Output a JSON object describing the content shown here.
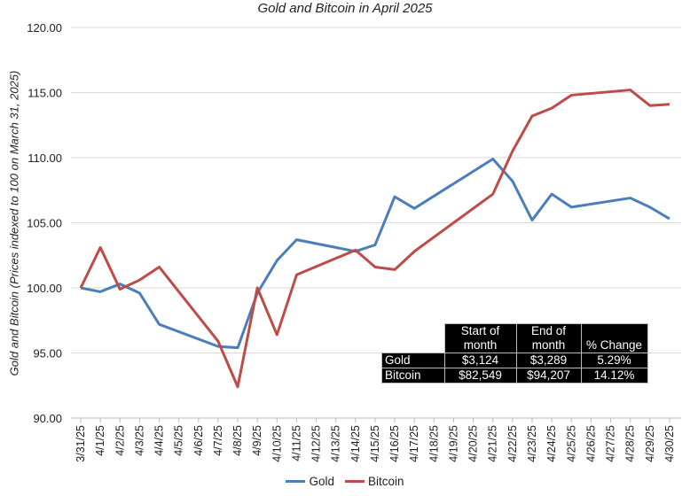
{
  "chart_data": {
    "type": "line",
    "title": "Gold and Bitcoin in April 2025",
    "ylabel": "Gold and Bitcoin (Prices indexed to 100 on March 31, 2025)",
    "xlabel": "",
    "ylim": [
      90,
      120
    ],
    "yticks": [
      "90.00",
      "95.00",
      "100.00",
      "105.00",
      "110.00",
      "115.00",
      "120.00"
    ],
    "xtick_labels": [
      "3/31/25",
      "4/1/25",
      "4/2/25",
      "4/3/25",
      "4/4/25",
      "4/5/25",
      "4/6/25",
      "4/7/25",
      "4/8/25",
      "4/9/25",
      "4/10/25",
      "4/11/25",
      "4/12/25",
      "4/13/25",
      "4/14/25",
      "4/15/25",
      "4/16/25",
      "4/17/25",
      "4/18/25",
      "4/19/25",
      "4/20/25",
      "4/21/25",
      "4/22/25",
      "4/23/25",
      "4/24/25",
      "4/25/25",
      "4/26/25",
      "4/27/25",
      "4/28/25",
      "4/29/25",
      "4/30/25"
    ],
    "x": [
      "3/31/25",
      "4/1/25",
      "4/2/25",
      "4/3/25",
      "4/4/25",
      "4/7/25",
      "4/8/25",
      "4/9/25",
      "4/10/25",
      "4/11/25",
      "4/14/25",
      "4/15/25",
      "4/16/25",
      "4/17/25",
      "4/21/25",
      "4/22/25",
      "4/23/25",
      "4/24/25",
      "4/25/25",
      "4/28/25",
      "4/29/25",
      "4/30/25"
    ],
    "grid": true,
    "legend_position": "bottom",
    "series": [
      {
        "name": "Gold",
        "color": "#4a7ebb",
        "values": [
          100.0,
          99.7,
          100.3,
          99.6,
          97.2,
          95.5,
          95.4,
          99.6,
          102.1,
          103.7,
          102.8,
          103.3,
          107.0,
          106.1,
          109.9,
          108.2,
          105.2,
          107.2,
          106.2,
          106.9,
          106.2,
          105.3
        ]
      },
      {
        "name": "Bitcoin",
        "color": "#be4b48",
        "values": [
          100.0,
          103.1,
          99.9,
          100.6,
          101.6,
          95.9,
          92.4,
          100.0,
          96.4,
          101.0,
          102.9,
          101.6,
          101.4,
          102.8,
          107.2,
          110.5,
          113.2,
          113.8,
          114.8,
          115.2,
          114.0,
          114.1
        ]
      }
    ]
  },
  "table": {
    "headers": [
      "Start of month",
      "End of month",
      "% Change"
    ],
    "rows": [
      {
        "label": "Gold",
        "start": "$3,124",
        "end": "$3,289",
        "change": "5.29%"
      },
      {
        "label": "Bitcoin",
        "start": "$82,549",
        "end": "$94,207",
        "change": "14.12%"
      }
    ]
  }
}
